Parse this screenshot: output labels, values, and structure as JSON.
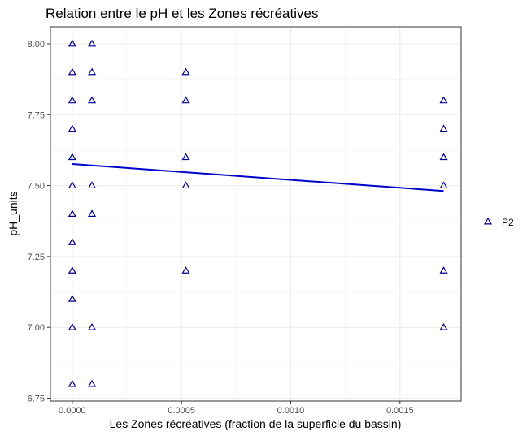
{
  "chart_data": {
    "type": "scatter",
    "title": "Relation entre le pH et les Zones récréatives",
    "xlabel": "Les Zones récréatives (fraction de la superficie du bassin)",
    "ylabel": "pH_units",
    "xlim": [
      -0.0001,
      0.00178
    ],
    "ylim": [
      6.74,
      8.06
    ],
    "x_ticks": [
      0.0,
      0.0005,
      0.001,
      0.0015
    ],
    "x_tick_labels": [
      "0.0000",
      "0.0005",
      "0.0010",
      "0.0015"
    ],
    "y_ticks": [
      6.75,
      7.0,
      7.25,
      7.5,
      7.75,
      8.0
    ],
    "y_tick_labels": [
      "6.75",
      "7.00",
      "7.25",
      "7.50",
      "7.75",
      "8.00"
    ],
    "grid": true,
    "legend_position": "right",
    "series": [
      {
        "name": "P2",
        "marker": "triangle-open",
        "color": "#00008b",
        "points": [
          [
            0.0,
            8.0
          ],
          [
            0.0,
            7.9
          ],
          [
            0.0,
            7.8
          ],
          [
            0.0,
            7.7
          ],
          [
            0.0,
            7.6
          ],
          [
            0.0,
            7.5
          ],
          [
            0.0,
            7.4
          ],
          [
            0.0,
            7.3
          ],
          [
            0.0,
            7.2
          ],
          [
            0.0,
            7.1
          ],
          [
            0.0,
            7.0
          ],
          [
            0.0,
            6.8
          ],
          [
            9e-05,
            8.0
          ],
          [
            9e-05,
            7.9
          ],
          [
            9e-05,
            7.8
          ],
          [
            9e-05,
            7.5
          ],
          [
            9e-05,
            7.4
          ],
          [
            9e-05,
            7.0
          ],
          [
            9e-05,
            6.8
          ],
          [
            0.00052,
            7.9
          ],
          [
            0.00052,
            7.8
          ],
          [
            0.00052,
            7.6
          ],
          [
            0.00052,
            7.5
          ],
          [
            0.00052,
            7.2
          ],
          [
            0.0017,
            7.8
          ],
          [
            0.0017,
            7.7
          ],
          [
            0.0017,
            7.6
          ],
          [
            0.0017,
            7.5
          ],
          [
            0.0017,
            7.2
          ],
          [
            0.0017,
            7.0
          ]
        ]
      }
    ],
    "trend_line": {
      "color": "#0000cd",
      "x": [
        0.0,
        0.0017
      ],
      "y": [
        7.576,
        7.481
      ]
    }
  }
}
